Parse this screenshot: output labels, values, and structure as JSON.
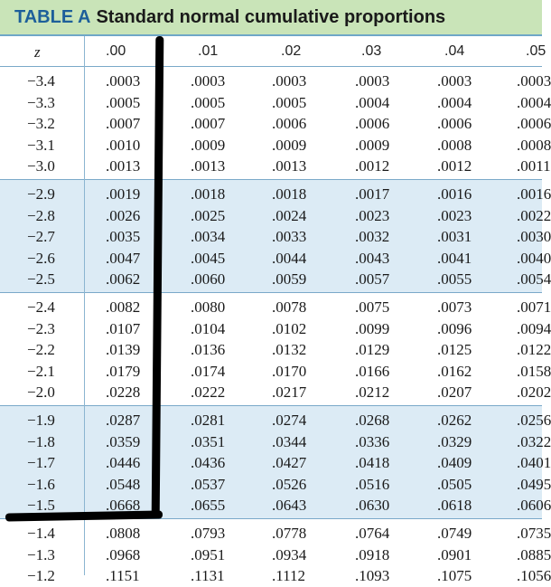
{
  "title": {
    "label": "TABLE A",
    "text": "Standard normal cumulative proportions"
  },
  "columns": [
    "z",
    ".00",
    ".01",
    ".02",
    ".03",
    ".04",
    ".05"
  ],
  "bands": [
    {
      "rows": [
        {
          "z": "−3.4",
          "v": [
            ".0003",
            ".0003",
            ".0003",
            ".0003",
            ".0003",
            ".0003"
          ]
        },
        {
          "z": "−3.3",
          "v": [
            ".0005",
            ".0005",
            ".0005",
            ".0004",
            ".0004",
            ".0004"
          ]
        },
        {
          "z": "−3.2",
          "v": [
            ".0007",
            ".0007",
            ".0006",
            ".0006",
            ".0006",
            ".0006"
          ]
        },
        {
          "z": "−3.1",
          "v": [
            ".0010",
            ".0009",
            ".0009",
            ".0009",
            ".0008",
            ".0008"
          ]
        },
        {
          "z": "−3.0",
          "v": [
            ".0013",
            ".0013",
            ".0013",
            ".0012",
            ".0012",
            ".0011"
          ]
        }
      ]
    },
    {
      "rows": [
        {
          "z": "−2.9",
          "v": [
            ".0019",
            ".0018",
            ".0018",
            ".0017",
            ".0016",
            ".0016"
          ]
        },
        {
          "z": "−2.8",
          "v": [
            ".0026",
            ".0025",
            ".0024",
            ".0023",
            ".0023",
            ".0022"
          ]
        },
        {
          "z": "−2.7",
          "v": [
            ".0035",
            ".0034",
            ".0033",
            ".0032",
            ".0031",
            ".0030"
          ]
        },
        {
          "z": "−2.6",
          "v": [
            ".0047",
            ".0045",
            ".0044",
            ".0043",
            ".0041",
            ".0040"
          ]
        },
        {
          "z": "−2.5",
          "v": [
            ".0062",
            ".0060",
            ".0059",
            ".0057",
            ".0055",
            ".0054"
          ]
        }
      ]
    },
    {
      "rows": [
        {
          "z": "−2.4",
          "v": [
            ".0082",
            ".0080",
            ".0078",
            ".0075",
            ".0073",
            ".0071"
          ]
        },
        {
          "z": "−2.3",
          "v": [
            ".0107",
            ".0104",
            ".0102",
            ".0099",
            ".0096",
            ".0094"
          ]
        },
        {
          "z": "−2.2",
          "v": [
            ".0139",
            ".0136",
            ".0132",
            ".0129",
            ".0125",
            ".0122"
          ]
        },
        {
          "z": "−2.1",
          "v": [
            ".0179",
            ".0174",
            ".0170",
            ".0166",
            ".0162",
            ".0158"
          ]
        },
        {
          "z": "−2.0",
          "v": [
            ".0228",
            ".0222",
            ".0217",
            ".0212",
            ".0207",
            ".0202"
          ]
        }
      ]
    },
    {
      "rows": [
        {
          "z": "−1.9",
          "v": [
            ".0287",
            ".0281",
            ".0274",
            ".0268",
            ".0262",
            ".0256"
          ]
        },
        {
          "z": "−1.8",
          "v": [
            ".0359",
            ".0351",
            ".0344",
            ".0336",
            ".0329",
            ".0322"
          ]
        },
        {
          "z": "−1.7",
          "v": [
            ".0446",
            ".0436",
            ".0427",
            ".0418",
            ".0409",
            ".0401"
          ]
        },
        {
          "z": "−1.6",
          "v": [
            ".0548",
            ".0537",
            ".0526",
            ".0516",
            ".0505",
            ".0495"
          ]
        },
        {
          "z": "−1.5",
          "v": [
            ".0668",
            ".0655",
            ".0643",
            ".0630",
            ".0618",
            ".0606"
          ]
        }
      ]
    },
    {
      "rows": [
        {
          "z": "−1.4",
          "v": [
            ".0808",
            ".0793",
            ".0778",
            ".0764",
            ".0749",
            ".0735"
          ]
        },
        {
          "z": "−1.3",
          "v": [
            ".0968",
            ".0951",
            ".0934",
            ".0918",
            ".0901",
            ".0885"
          ]
        },
        {
          "z": "−1.2",
          "v": [
            ".1151",
            ".1131",
            ".1112",
            ".1093",
            ".1075",
            ".1056"
          ]
        }
      ]
    }
  ]
}
